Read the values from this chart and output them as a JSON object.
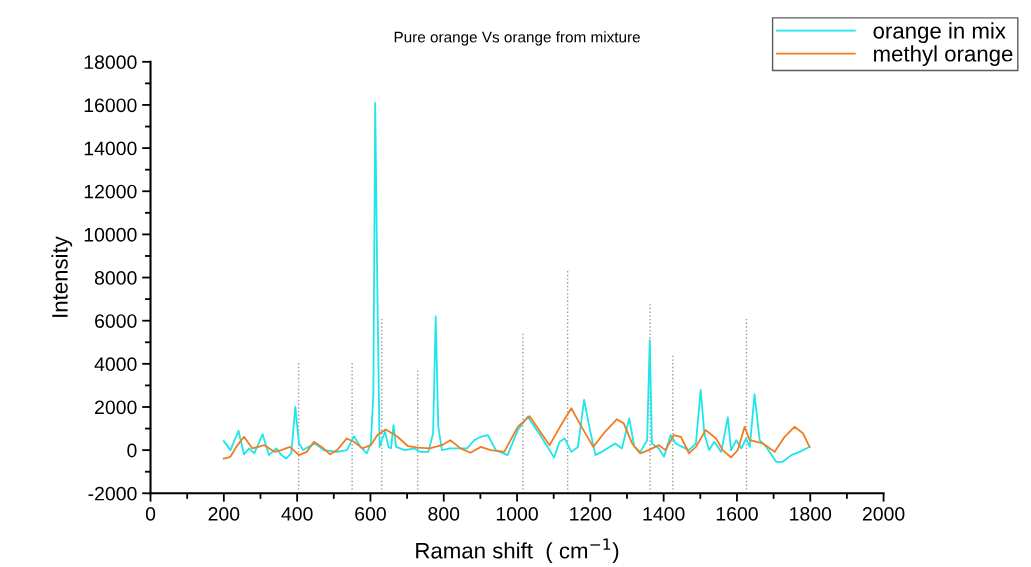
{
  "chart_data": {
    "type": "line",
    "title": "Pure orange Vs orange from mixture",
    "xlabel": "Raman shift  ( cm$^{−1}$)",
    "ylabel": "Intensity",
    "xlim": [
      0,
      2000
    ],
    "ylim": [
      -2000,
      18000
    ],
    "xticks": [
      0,
      {
        "value": 100,
        "label": null
      },
      200,
      {
        "value": 300,
        "label": null
      },
      400,
      {
        "value": 500,
        "label": null
      },
      600,
      {
        "value": 700,
        "label": null
      },
      800,
      {
        "value": 900,
        "label": null
      },
      1000,
      {
        "value": 1100,
        "label": null
      },
      1200,
      {
        "value": 1300,
        "label": null
      },
      1400,
      {
        "value": 1500,
        "label": null
      },
      1600,
      {
        "value": 1700,
        "label": null
      },
      1800,
      {
        "value": 1900,
        "label": null
      },
      2000
    ],
    "yticks": [
      -2000,
      {
        "value": -1000,
        "label": null
      },
      0,
      {
        "value": 1000,
        "label": null
      },
      2000,
      {
        "value": 3000,
        "label": null
      },
      4000,
      {
        "value": 5000,
        "label": null
      },
      6000,
      {
        "value": 7000,
        "label": null
      },
      8000,
      {
        "value": 9000,
        "label": null
      },
      10000,
      {
        "value": 11000,
        "label": null
      },
      12000,
      {
        "value": 13000,
        "label": null
      },
      14000,
      {
        "value": 15000,
        "label": null
      },
      16000,
      {
        "value": 17000,
        "label": null
      },
      18000
    ],
    "grid": false,
    "legend": "top right",
    "marker": "none",
    "line_style": "solid",
    "series": [
      {
        "name": "orange in mix",
        "color": "#1ee6ea",
        "x": [
          200,
          218,
          240,
          255,
          269,
          283,
          306,
          323,
          343,
          357,
          370,
          384,
          395,
          405,
          417,
          426,
          449,
          472,
          509,
          536,
          555,
          573,
          590,
          601,
          608,
          613,
          619,
          625,
          631,
          640,
          649,
          656,
          663,
          670,
          693,
          721,
          735,
          758,
          771,
          778,
          785,
          795,
          818,
          864,
          883,
          901,
          920,
          942,
          974,
          1002,
          1029,
          1066,
          1101,
          1116,
          1130,
          1148,
          1166,
          1183,
          1199,
          1214,
          1231,
          1268,
          1286,
          1306,
          1320,
          1336,
          1355,
          1362,
          1368,
          1387,
          1401,
          1419,
          1433,
          1451,
          1469,
          1488,
          1501,
          1511,
          1524,
          1538,
          1557,
          1575,
          1584,
          1598,
          1612,
          1625,
          1635,
          1648,
          1662,
          1680,
          1707,
          1725,
          1748,
          1771,
          1798
        ],
        "values": [
          420,
          0,
          900,
          -200,
          80,
          -150,
          740,
          -230,
          80,
          -230,
          -390,
          -150,
          2000,
          310,
          0,
          110,
          310,
          0,
          -80,
          0,
          650,
          150,
          -150,
          310,
          2600,
          16100,
          7300,
          150,
          460,
          850,
          150,
          80,
          1160,
          150,
          0,
          80,
          -80,
          -80,
          780,
          6200,
          1100,
          0,
          80,
          80,
          460,
          620,
          700,
          0,
          -230,
          930,
          1550,
          620,
          -340,
          390,
          540,
          -80,
          150,
          2330,
          930,
          -230,
          -80,
          310,
          80,
          1470,
          150,
          -80,
          460,
          5100,
          310,
          80,
          -310,
          700,
          310,
          150,
          0,
          310,
          2790,
          780,
          0,
          390,
          -80,
          1520,
          0,
          460,
          80,
          540,
          150,
          2590,
          460,
          150,
          -540,
          -540,
          -230,
          -80,
          150
        ]
      },
      {
        "name": "methyl orange",
        "color": "#f07d22",
        "x": [
          200,
          218,
          234,
          255,
          278,
          311,
          338,
          357,
          380,
          405,
          426,
          446,
          467,
          490,
          509,
          535,
          555,
          578,
          601,
          619,
          642,
          674,
          702,
          730,
          762,
          795,
          818,
          846,
          873,
          901,
          928,
          965,
          1002,
          1034,
          1066,
          1089,
          1112,
          1148,
          1176,
          1208,
          1240,
          1272,
          1291,
          1314,
          1336,
          1359,
          1387,
          1405,
          1428,
          1447,
          1469,
          1488,
          1515,
          1543,
          1561,
          1584,
          1602,
          1621,
          1635,
          1671,
          1703,
          1730,
          1757,
          1780,
          1798
        ],
        "values": [
          -390,
          -310,
          150,
          620,
          80,
          230,
          -80,
          0,
          150,
          -230,
          -80,
          390,
          150,
          -190,
          0,
          540,
          390,
          80,
          230,
          700,
          960,
          620,
          190,
          120,
          80,
          230,
          460,
          80,
          -120,
          150,
          0,
          -80,
          1080,
          1580,
          780,
          230,
          930,
          1940,
          1080,
          150,
          850,
          1430,
          1240,
          310,
          -150,
          0,
          230,
          0,
          700,
          620,
          -150,
          150,
          930,
          540,
          0,
          -340,
          0,
          1080,
          460,
          310,
          -80,
          620,
          1080,
          780,
          150
        ]
      },
      {
        "color": "#999999",
        "line_style": "dotted",
        "x": [
          404,
          404
        ],
        "values": [
          -2000,
          4100
        ]
      },
      {
        "color": "#999999",
        "line_style": "dotted",
        "x": [
          550,
          550
        ],
        "values": [
          -2000,
          4100
        ]
      },
      {
        "color": "#999999",
        "line_style": "dotted",
        "x": [
          631,
          631
        ],
        "values": [
          -2000,
          6100
        ]
      },
      {
        "color": "#999999",
        "line_style": "dotted",
        "x": [
          729,
          729
        ],
        "values": [
          -2000,
          3800
        ]
      },
      {
        "color": "#999999",
        "line_style": "dotted",
        "x": [
          1016,
          1016
        ],
        "values": [
          -2000,
          5400
        ]
      },
      {
        "color": "#999999",
        "line_style": "dotted",
        "x": [
          1138,
          1138
        ],
        "values": [
          -2000,
          8300
        ]
      },
      {
        "color": "#999999",
        "line_style": "dotted",
        "x": [
          1363,
          1363
        ],
        "values": [
          -2000,
          6800
        ]
      },
      {
        "color": "#999999",
        "line_style": "dotted",
        "x": [
          1425,
          1425
        ],
        "values": [
          -2000,
          4400
        ]
      },
      {
        "color": "#999999",
        "line_style": "dotted",
        "x": [
          1626,
          1626
        ],
        "values": [
          -2000,
          6100
        ]
      }
    ]
  }
}
